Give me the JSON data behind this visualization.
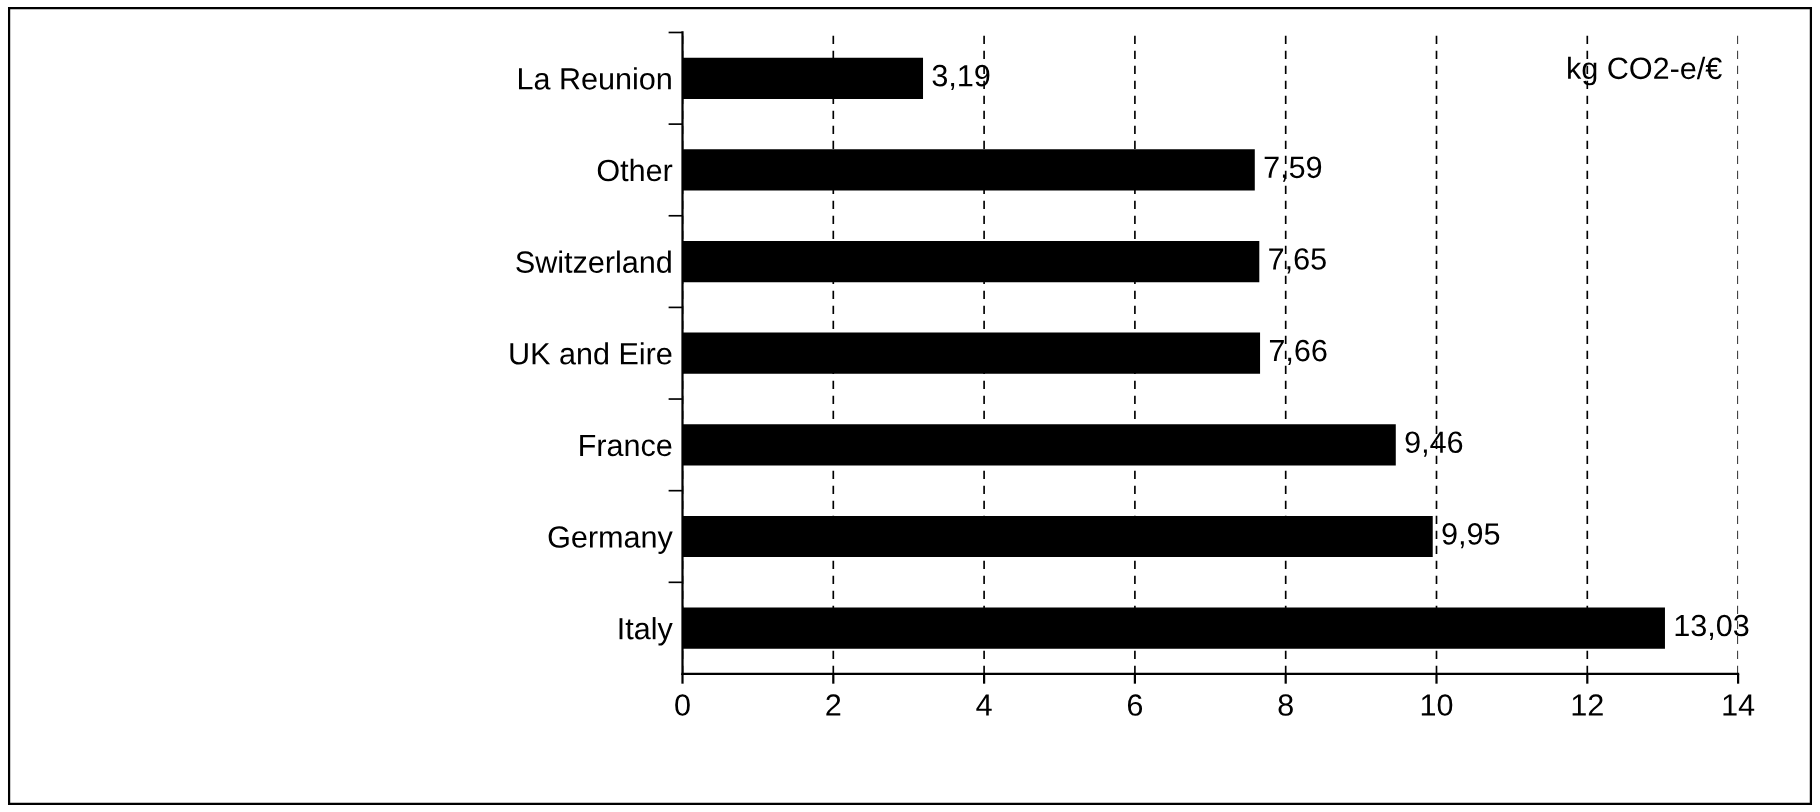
{
  "chart_data": {
    "type": "bar",
    "orientation": "horizontal",
    "categories": [
      "La Reunion",
      "Other",
      "Switzerland",
      "UK and Eire",
      "France",
      "Germany",
      "Italy"
    ],
    "values": [
      3.19,
      7.59,
      7.65,
      7.66,
      9.46,
      9.95,
      13.03
    ],
    "value_labels": [
      "3,19",
      "7,59",
      "7,65",
      "7,66",
      "9,46",
      "9,95",
      "13,03"
    ],
    "color": "#000000",
    "xlim": [
      0,
      14
    ],
    "xticks": [
      0,
      2,
      4,
      6,
      8,
      10,
      12,
      14
    ],
    "grid": "x",
    "legend": false,
    "annotations": [
      "kg CO2-e/€"
    ]
  }
}
